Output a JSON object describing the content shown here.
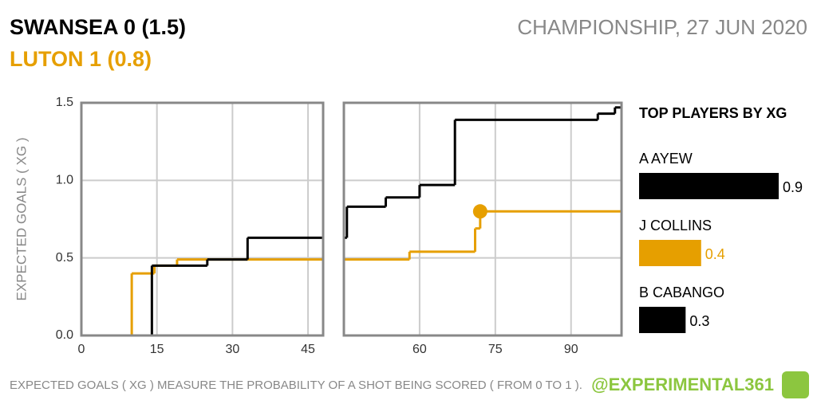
{
  "header": {
    "home": "SWANSEA 0 (1.5)",
    "away": "LUTON 1 (0.8)",
    "match": "CHAMPIONSHIP, 27 JUN 2020"
  },
  "footer": {
    "note": "EXPECTED GOALS ( XG ) MEASURE THE PROBABILITY OF A SHOT BEING SCORED ( FROM 0 TO 1 ).",
    "handle": "@EXPERIMENTAL361"
  },
  "chart_data": [
    {
      "type": "step",
      "ylabel": "EXPECTED GOALS ( XG )",
      "xlim": [
        0,
        48
      ],
      "ylim": [
        0,
        1.5
      ],
      "xticks": [
        0,
        15,
        30,
        45
      ],
      "yticks": [
        {
          "value": 0,
          "label": "0.0"
        },
        0.5,
        {
          "value": 1,
          "label": "1.0"
        },
        1.5
      ],
      "grid": true,
      "series": [
        {
          "color": "#e69f00",
          "x": [
            0,
            10,
            14.5,
            19,
            48
          ],
          "values": [
            0,
            0.4,
            0.45,
            0.49,
            0.49
          ]
        },
        {
          "color": "#000000",
          "x": [
            0,
            14,
            25,
            33,
            48
          ],
          "values": [
            0,
            0.45,
            0.49,
            0.63,
            0.63
          ]
        }
      ]
    },
    {
      "type": "step",
      "xlim": [
        45,
        100
      ],
      "ylim": [
        0,
        1.5
      ],
      "xticks": [
        60,
        75,
        90
      ],
      "yticks": [
        0,
        0.5,
        1,
        1.5
      ],
      "grid": true,
      "series": [
        {
          "color": "#e69f00",
          "x": [
            45,
            58,
            71,
            72,
            100
          ],
          "values": [
            0.49,
            0.54,
            0.69,
            0.8,
            0.8
          ]
        },
        {
          "color": "#000000",
          "x": [
            45,
            45.6,
            53.3,
            60,
            67,
            95.3,
            98.7,
            100
          ],
          "values": [
            0.63,
            0.83,
            0.89,
            0.97,
            1.39,
            1.43,
            1.47,
            1.47
          ]
        }
      ],
      "markers": [
        {
          "x": 72,
          "value": 0.8,
          "color": "#e69f00"
        }
      ]
    },
    {
      "type": "bar",
      "title": "TOP PLAYERS BY XG",
      "xlim": [
        0,
        0.9
      ],
      "categories": [
        "A AYEW",
        "J COLLINS",
        "B CABANGO"
      ],
      "values": [
        0.9,
        0.4,
        0.3
      ],
      "colors": [
        "#000000",
        "#e69f00",
        "#000000"
      ]
    }
  ]
}
